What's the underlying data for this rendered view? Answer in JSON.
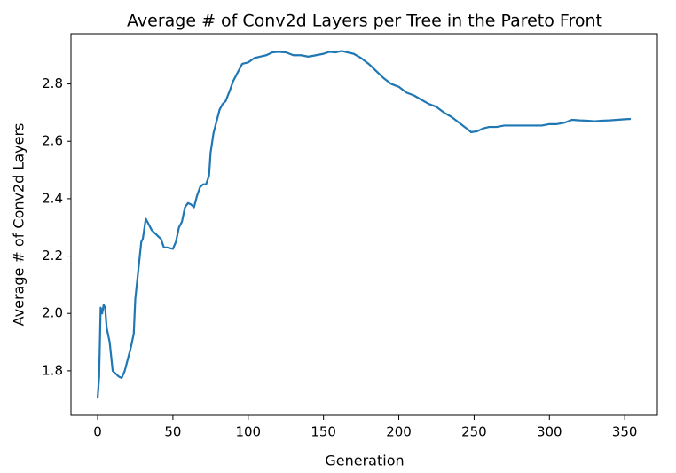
{
  "chart_data": {
    "type": "line",
    "title": "Average # of Conv2d Layers per Tree in the Pareto Front",
    "x_label": "Generation",
    "y_label": "Average # of Conv2d Layers",
    "x": [
      0,
      1,
      2,
      3,
      4,
      5,
      6,
      8,
      10,
      12,
      14,
      16,
      18,
      20,
      22,
      24,
      25,
      27,
      29,
      30,
      32,
      34,
      36,
      38,
      40,
      42,
      44,
      46,
      50,
      52,
      54,
      56,
      58,
      60,
      62,
      64,
      66,
      68,
      70,
      72,
      74,
      75,
      77,
      79,
      81,
      83,
      85,
      88,
      90,
      93,
      96,
      100,
      104,
      108,
      112,
      116,
      120,
      125,
      130,
      135,
      140,
      145,
      150,
      154,
      158,
      162,
      166,
      170,
      175,
      180,
      185,
      190,
      195,
      200,
      205,
      210,
      215,
      220,
      225,
      230,
      235,
      240,
      245,
      248,
      252,
      256,
      260,
      265,
      270,
      275,
      280,
      285,
      290,
      295,
      300,
      305,
      310,
      315,
      320,
      325,
      330,
      335,
      340,
      345,
      350,
      354
    ],
    "series": [
      {
        "name": "Average # of Conv2d Layers",
        "color": "#1f77b4",
        "values": [
          1.705,
          1.78,
          2.02,
          2.0,
          2.03,
          2.02,
          1.95,
          1.9,
          1.8,
          1.79,
          1.78,
          1.775,
          1.8,
          1.84,
          1.88,
          1.93,
          2.05,
          2.15,
          2.25,
          2.26,
          2.33,
          2.31,
          2.29,
          2.28,
          2.27,
          2.26,
          2.23,
          2.23,
          2.225,
          2.25,
          2.3,
          2.32,
          2.37,
          2.385,
          2.38,
          2.37,
          2.41,
          2.44,
          2.45,
          2.45,
          2.48,
          2.56,
          2.63,
          2.67,
          2.71,
          2.73,
          2.74,
          2.78,
          2.81,
          2.84,
          2.87,
          2.875,
          2.89,
          2.895,
          2.9,
          2.91,
          2.912,
          2.91,
          2.9,
          2.9,
          2.895,
          2.9,
          2.905,
          2.912,
          2.91,
          2.915,
          2.91,
          2.905,
          2.89,
          2.87,
          2.845,
          2.82,
          2.8,
          2.79,
          2.77,
          2.76,
          2.745,
          2.73,
          2.72,
          2.7,
          2.685,
          2.665,
          2.645,
          2.632,
          2.635,
          2.645,
          2.65,
          2.65,
          2.655,
          2.655,
          2.655,
          2.655,
          2.655,
          2.655,
          2.66,
          2.66,
          2.665,
          2.675,
          2.673,
          2.672,
          2.67,
          2.672,
          2.673,
          2.675,
          2.677,
          2.678
        ]
      }
    ],
    "xlim": [
      -17.7,
      371.7
    ],
    "ylim": [
      1.645,
      2.975
    ],
    "xticks": [
      0,
      50,
      100,
      150,
      200,
      250,
      300,
      350
    ],
    "yticks": [
      1.8,
      {
        "value": 2,
        "label": "2.0"
      },
      2.2,
      2.4,
      2.6,
      2.8
    ],
    "grid": false
  }
}
